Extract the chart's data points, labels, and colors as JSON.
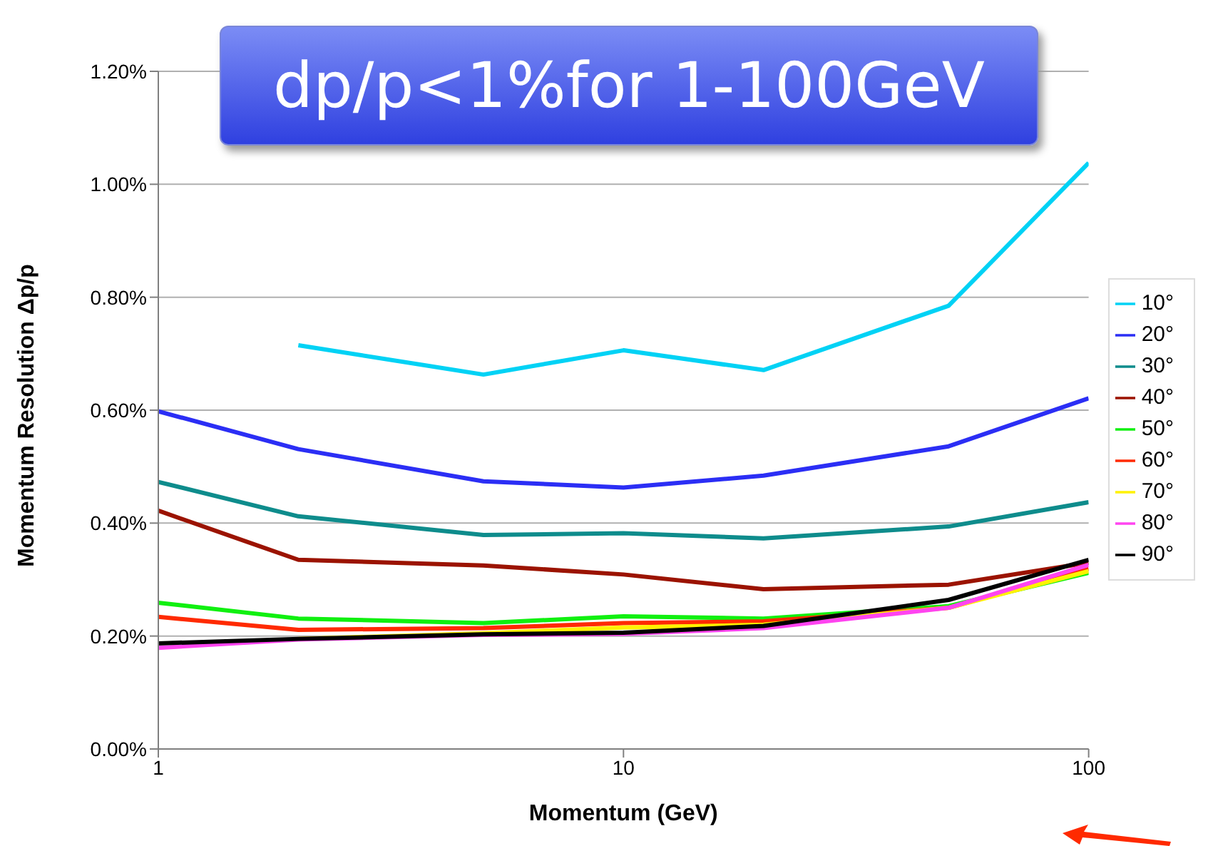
{
  "chart_data": {
    "type": "line",
    "title": "dp/p<1%for 1-100GeV",
    "xlabel": "Momentum (GeV)",
    "ylabel": "Momentum Resolution  Δp/p",
    "log": "x",
    "grid": "y",
    "legend": "right",
    "marker": "none",
    "line_style": "solid",
    "x": [
      1,
      2,
      5,
      10,
      20,
      50,
      100
    ],
    "xlim": [
      1,
      100
    ],
    "xticks": [
      1,
      10,
      100
    ],
    "ylim": [
      0,
      1.2
    ],
    "yticks": [
      {
        "value": 0,
        "label": "0.00%"
      },
      {
        "value": 0.2,
        "label": "0.20%"
      },
      {
        "value": 0.4,
        "label": "0.40%"
      },
      {
        "value": 0.6,
        "label": "0.60%"
      },
      {
        "value": 0.8,
        "label": "0.80%"
      },
      {
        "value": 1.0,
        "label": "1.00%"
      },
      {
        "value": 1.2,
        "label": "1.20%"
      }
    ],
    "series": [
      {
        "name": "10°",
        "color": "#00d2f5",
        "values": [
          null,
          0.715,
          0.663,
          0.706,
          0.671,
          0.785,
          1.038
        ]
      },
      {
        "name": "20°",
        "color": "#2b2ef5",
        "values": [
          0.598,
          0.531,
          0.474,
          0.463,
          0.484,
          0.536,
          0.621
        ]
      },
      {
        "name": "30°",
        "color": "#0e8c8c",
        "values": [
          0.473,
          0.412,
          0.379,
          0.382,
          0.373,
          0.394,
          0.437
        ]
      },
      {
        "name": "40°",
        "color": "#9b1300",
        "values": [
          0.422,
          0.335,
          0.325,
          0.309,
          0.283,
          0.291,
          0.33
        ]
      },
      {
        "name": "50°",
        "color": "#10f010",
        "values": [
          0.259,
          0.231,
          0.223,
          0.235,
          0.231,
          0.253,
          0.312
        ]
      },
      {
        "name": "60°",
        "color": "#ff2a00",
        "values": [
          0.234,
          0.211,
          0.214,
          0.223,
          0.226,
          0.25,
          0.319
        ]
      },
      {
        "name": "70°",
        "color": "#fff200",
        "values": [
          null,
          0.195,
          0.205,
          0.215,
          0.22,
          0.25,
          0.315
        ]
      },
      {
        "name": "80°",
        "color": "#ff44f0",
        "values": [
          0.179,
          0.194,
          0.202,
          0.204,
          0.214,
          0.25,
          0.326
        ]
      },
      {
        "name": "90°",
        "color": "#000000",
        "values": [
          0.187,
          0.195,
          0.203,
          0.206,
          0.218,
          0.264,
          0.335
        ]
      }
    ]
  }
}
